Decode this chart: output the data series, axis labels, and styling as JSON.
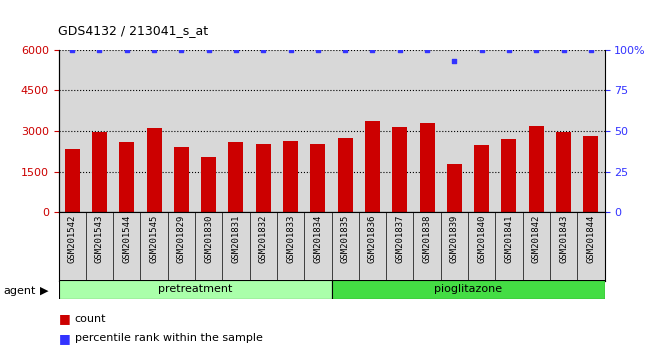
{
  "title": "GDS4132 / 213041_s_at",
  "categories": [
    "GSM201542",
    "GSM201543",
    "GSM201544",
    "GSM201545",
    "GSM201829",
    "GSM201830",
    "GSM201831",
    "GSM201832",
    "GSM201833",
    "GSM201834",
    "GSM201835",
    "GSM201836",
    "GSM201837",
    "GSM201838",
    "GSM201839",
    "GSM201840",
    "GSM201841",
    "GSM201842",
    "GSM201843",
    "GSM201844"
  ],
  "counts": [
    2350,
    2980,
    2600,
    3100,
    2420,
    2050,
    2600,
    2520,
    2620,
    2520,
    2750,
    3350,
    3150,
    3280,
    1800,
    2500,
    2700,
    3200,
    2970,
    2800
  ],
  "percentile_ranks": [
    100,
    100,
    100,
    100,
    100,
    100,
    100,
    100,
    100,
    100,
    100,
    100,
    100,
    100,
    93,
    100,
    100,
    100,
    100,
    100
  ],
  "bar_color": "#cc0000",
  "dot_color": "#3333ff",
  "pretreatment_color": "#aaffaa",
  "pioglitazone_color": "#44dd44",
  "agent_label": "agent",
  "pretreatment_label": "pretreatment",
  "pioglitazone_label": "pioglitazone",
  "count_label": "count",
  "percentile_label": "percentile rank within the sample",
  "ylim_left": [
    0,
    6000
  ],
  "ylim_right": [
    0,
    100
  ],
  "yticks_left": [
    0,
    1500,
    3000,
    4500,
    6000
  ],
  "yticks_right": [
    0,
    25,
    50,
    75,
    100
  ],
  "background_color": "#d8d8d8",
  "fig_bg": "#ffffff",
  "n_pretreatment": 10,
  "n_pioglitazone": 10
}
